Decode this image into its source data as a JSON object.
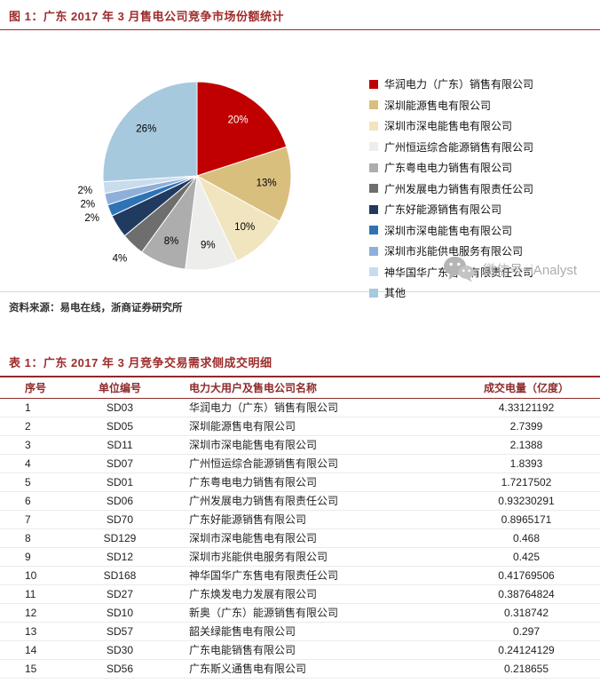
{
  "page": {
    "figure_title": "图 1：广东 2017 年 3 月售电公司竞争市场份额统计",
    "figure_source": "资料来源：易电在线，浙商证券研究所",
    "table_title": "表 1：广东 2017 年 3 月竞争交易需求侧成交明细",
    "watermark_text": "微信号: iAnalyst"
  },
  "colors": {
    "accent_red": "#9E2B2B",
    "table_header_red": "#8E2A2B",
    "watermark_gray": "#ADADAD",
    "row_border_gray": "#EBEBEB"
  },
  "chart_data": {
    "type": "pie",
    "title": "广东 2017 年 3 月售电公司竞争市场份额统计",
    "legend_position": "right",
    "unit": "percent of market share",
    "slices": [
      {
        "name": "华润电力（广东）销售有限公司",
        "pct": 20,
        "label": "20%",
        "color": "#C00000",
        "label_inside": true,
        "label_color": "#FFFFFF"
      },
      {
        "name": "深圳能源售电有限公司",
        "pct": 13,
        "label": "13%",
        "color": "#D9BF7D",
        "label_inside": true,
        "label_color": "#000000"
      },
      {
        "name": "深圳市深电能售电有限公司",
        "pct": 10,
        "label": "10%",
        "color": "#F1E5BF",
        "label_inside": true,
        "label_color": "#000000"
      },
      {
        "name": "广州恒运综合能源销售有限公司",
        "pct": 9,
        "label": "9%",
        "color": "#EDEDEB",
        "label_inside": true,
        "label_color": "#000000"
      },
      {
        "name": "广东粤电电力销售有限公司",
        "pct": 8,
        "label": "8%",
        "color": "#ADADAD",
        "label_inside": true,
        "label_color": "#000000"
      },
      {
        "name": "广州发展电力销售有限责任公司",
        "pct": 4,
        "label": "4%",
        "color": "#6E6E6E",
        "label_inside": false,
        "label_color": "#000000"
      },
      {
        "name": "广东好能源销售有限公司",
        "pct": 4,
        "label": "",
        "color": "#203A60",
        "label_inside": false,
        "label_color": "#000000"
      },
      {
        "name": "深圳市深电能售电有限公司",
        "pct": 2,
        "label": "2%",
        "color": "#2E74B5",
        "label_inside": false,
        "label_color": "#000000"
      },
      {
        "name": "深圳市兆能供电服务有限公司",
        "pct": 2,
        "label": "2%",
        "color": "#8FAFDB",
        "label_inside": false,
        "label_color": "#000000"
      },
      {
        "name": "神华国华广东售电有限责任公司",
        "pct": 2,
        "label": "2%",
        "color": "#C9DCEE",
        "label_inside": false,
        "label_color": "#000000"
      },
      {
        "name": "其他",
        "pct": 26,
        "label": "26%",
        "color": "#A6C9DE",
        "label_inside": true,
        "label_color": "#000000"
      }
    ]
  },
  "table": {
    "columns": [
      "序号",
      "单位编号",
      "电力大用户及售电公司名称",
      "成交电量（亿度）"
    ],
    "rows": [
      [
        "1",
        "SD03",
        "华润电力（广东）销售有限公司",
        "4.33121192"
      ],
      [
        "2",
        "SD05",
        "深圳能源售电有限公司",
        "2.7399"
      ],
      [
        "3",
        "SD11",
        "深圳市深电能售电有限公司",
        "2.1388"
      ],
      [
        "4",
        "SD07",
        "广州恒运综合能源销售有限公司",
        "1.8393"
      ],
      [
        "5",
        "SD01",
        "广东粤电电力销售有限公司",
        "1.7217502"
      ],
      [
        "6",
        "SD06",
        "广州发展电力销售有限责任公司",
        "0.93230291"
      ],
      [
        "7",
        "SD70",
        "广东好能源销售有限公司",
        "0.8965171"
      ],
      [
        "8",
        "SD129",
        "深圳市深电能售电有限公司",
        "0.468"
      ],
      [
        "9",
        "SD12",
        "深圳市兆能供电服务有限公司",
        "0.425"
      ],
      [
        "10",
        "SD168",
        "神华国华广东售电有限责任公司",
        "0.41769506"
      ],
      [
        "11",
        "SD27",
        "广东焕发电力发展有限公司",
        "0.38764824"
      ],
      [
        "12",
        "SD10",
        "新奥（广东）能源销售有限公司",
        "0.318742"
      ],
      [
        "13",
        "SD57",
        "韶关绿能售电有限公司",
        "0.297"
      ],
      [
        "14",
        "SD30",
        "广东电能销售有限公司",
        "0.24124129"
      ],
      [
        "15",
        "SD56",
        "广东斯义通售电有限公司",
        "0.218655"
      ]
    ]
  }
}
